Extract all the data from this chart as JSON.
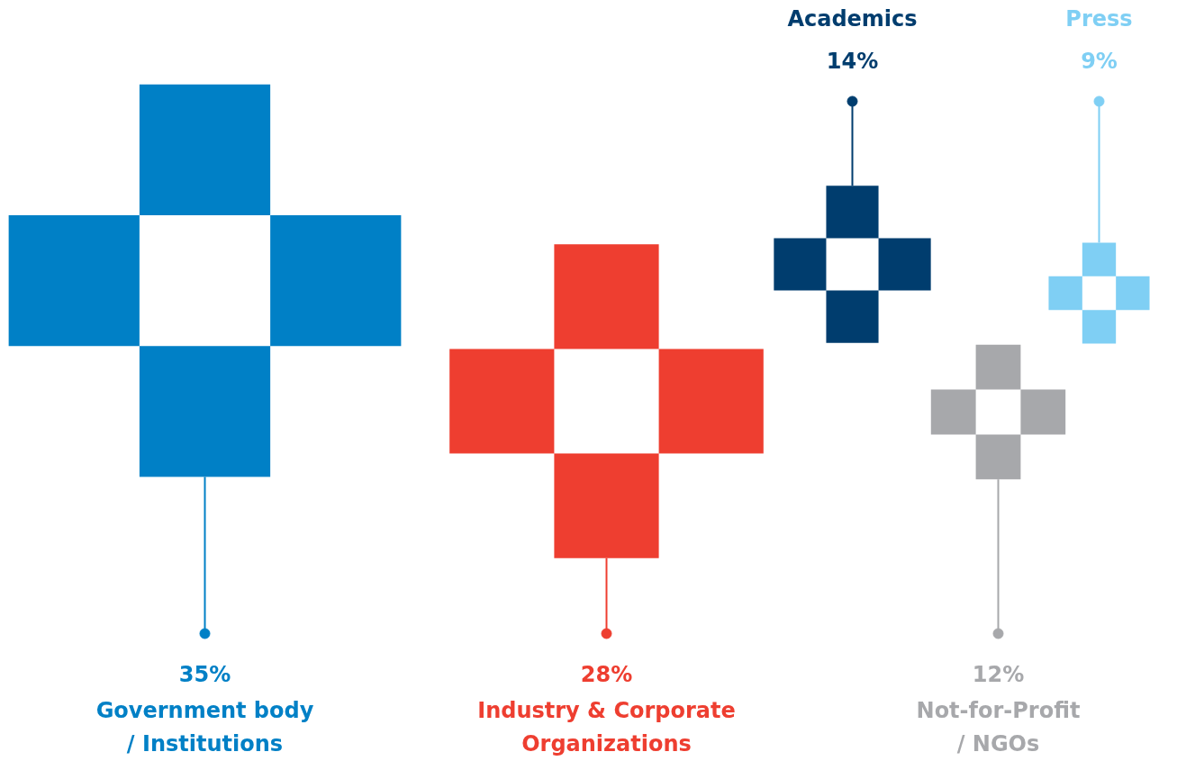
{
  "chart_data": {
    "type": "other",
    "categories": [
      "Government body\n/ Institutions",
      "Industry & Corporate\nOrganizations",
      "Academics",
      "Not-for-Profit\n/ NGOs",
      "Press"
    ],
    "values": [
      35,
      28,
      14,
      12,
      9
    ],
    "value_labels": [
      "35%",
      "28%",
      "14%",
      "12%",
      "9%"
    ],
    "colors": [
      "#0080c6",
      "#ee3e30",
      "#003d6e",
      "#a7a8ab",
      "#7fcff4"
    ]
  }
}
